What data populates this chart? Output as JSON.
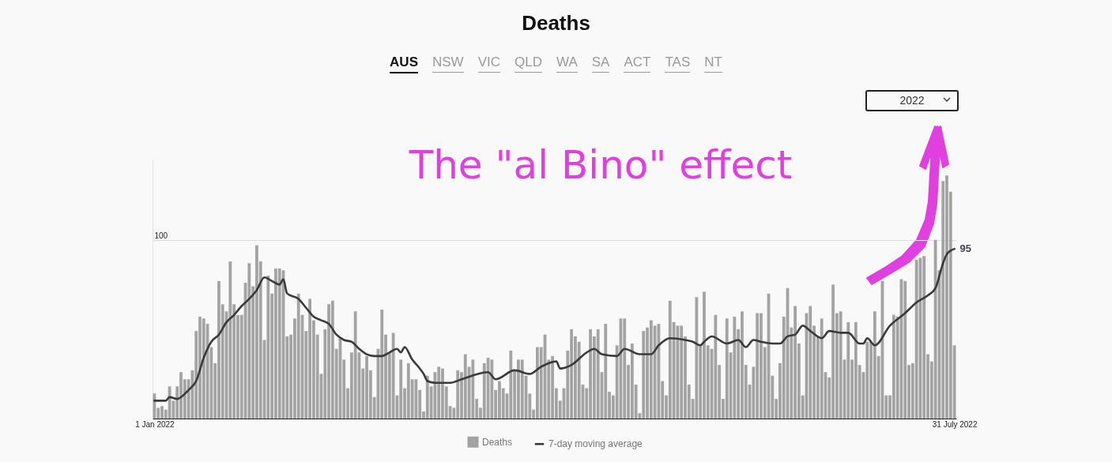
{
  "chart_data": {
    "type": "bar",
    "title": "Deaths",
    "annotations": [
      "AUS",
      "NSW",
      "VIC",
      "QLD",
      "WA",
      "SA",
      "ACT",
      "TAS",
      "NT",
      "2022",
      "The \"al Bino\" effect"
    ],
    "x": [
      "2022-01-01",
      "2022-01-02",
      "2022-01-03",
      "2022-01-04",
      "2022-01-05",
      "2022-01-06",
      "2022-01-07",
      "2022-01-08",
      "2022-01-09",
      "2022-01-10",
      "2022-01-11",
      "2022-01-12",
      "2022-01-13",
      "2022-01-14",
      "2022-01-15",
      "2022-01-16",
      "2022-01-17",
      "2022-01-18",
      "2022-01-19",
      "2022-01-20",
      "2022-01-21",
      "2022-01-22",
      "2022-01-23",
      "2022-01-24",
      "2022-01-25",
      "2022-01-26",
      "2022-01-27",
      "2022-01-28",
      "2022-01-29",
      "2022-01-30",
      "2022-01-31",
      "2022-02-01",
      "2022-02-02",
      "2022-02-03",
      "2022-02-04",
      "2022-02-05",
      "2022-02-06",
      "2022-02-07",
      "2022-02-08",
      "2022-02-09",
      "2022-02-10",
      "2022-02-11",
      "2022-02-12",
      "2022-02-13",
      "2022-02-14",
      "2022-02-15",
      "2022-02-16",
      "2022-02-17",
      "2022-02-18",
      "2022-02-19",
      "2022-02-20",
      "2022-02-21",
      "2022-02-22",
      "2022-02-23",
      "2022-02-24",
      "2022-02-25",
      "2022-02-26",
      "2022-02-27",
      "2022-02-28",
      "2022-03-01",
      "2022-03-02",
      "2022-03-03",
      "2022-03-04",
      "2022-03-05",
      "2022-03-06",
      "2022-03-07",
      "2022-03-08",
      "2022-03-09",
      "2022-03-10",
      "2022-03-11",
      "2022-03-12",
      "2022-03-13",
      "2022-03-14",
      "2022-03-15",
      "2022-03-16",
      "2022-03-17",
      "2022-03-18",
      "2022-03-19",
      "2022-03-20",
      "2022-03-21",
      "2022-03-22",
      "2022-03-23",
      "2022-03-24",
      "2022-03-25",
      "2022-03-26",
      "2022-03-27",
      "2022-03-28",
      "2022-03-29",
      "2022-03-30",
      "2022-03-31",
      "2022-04-01",
      "2022-04-02",
      "2022-04-03",
      "2022-04-04",
      "2022-04-05",
      "2022-04-06",
      "2022-04-07",
      "2022-04-08",
      "2022-04-09",
      "2022-04-10",
      "2022-04-11",
      "2022-04-12",
      "2022-04-13",
      "2022-04-14",
      "2022-04-15",
      "2022-04-16",
      "2022-04-17",
      "2022-04-18",
      "2022-04-19",
      "2022-04-20",
      "2022-04-21",
      "2022-04-22",
      "2022-04-23",
      "2022-04-24",
      "2022-04-25",
      "2022-04-26",
      "2022-04-27",
      "2022-04-28",
      "2022-04-29",
      "2022-04-30",
      "2022-05-01",
      "2022-05-02",
      "2022-05-03",
      "2022-05-04",
      "2022-05-05",
      "2022-05-06",
      "2022-05-07",
      "2022-05-08",
      "2022-05-09",
      "2022-05-10",
      "2022-05-11",
      "2022-05-12",
      "2022-05-13",
      "2022-05-14",
      "2022-05-15",
      "2022-05-16",
      "2022-05-17",
      "2022-05-18",
      "2022-05-19",
      "2022-05-20",
      "2022-05-21",
      "2022-05-22",
      "2022-05-23",
      "2022-05-24",
      "2022-05-25",
      "2022-05-26",
      "2022-05-27",
      "2022-05-28",
      "2022-05-29",
      "2022-05-30",
      "2022-05-31",
      "2022-06-01",
      "2022-06-02",
      "2022-06-03",
      "2022-06-04",
      "2022-06-05",
      "2022-06-06",
      "2022-06-07",
      "2022-06-08",
      "2022-06-09",
      "2022-06-10",
      "2022-06-11",
      "2022-06-12",
      "2022-06-13",
      "2022-06-14",
      "2022-06-15",
      "2022-06-16",
      "2022-06-17",
      "2022-06-18",
      "2022-06-19",
      "2022-06-20",
      "2022-06-21",
      "2022-06-22",
      "2022-06-23",
      "2022-06-24",
      "2022-06-25",
      "2022-06-26",
      "2022-06-27",
      "2022-06-28",
      "2022-06-29",
      "2022-06-30",
      "2022-07-01",
      "2022-07-02",
      "2022-07-03",
      "2022-07-04",
      "2022-07-05",
      "2022-07-06",
      "2022-07-07",
      "2022-07-08",
      "2022-07-09",
      "2022-07-10",
      "2022-07-11",
      "2022-07-12",
      "2022-07-13",
      "2022-07-14",
      "2022-07-15",
      "2022-07-16",
      "2022-07-17",
      "2022-07-18",
      "2022-07-19",
      "2022-07-20",
      "2022-07-21",
      "2022-07-22",
      "2022-07-23",
      "2022-07-24",
      "2022-07-25",
      "2022-07-26",
      "2022-07-27",
      "2022-07-28",
      "2022-07-29",
      "2022-07-30",
      "2022-07-31"
    ],
    "series": [
      {
        "name": "Deaths",
        "color": "#a3a3a3",
        "values": [
          14,
          6,
          7,
          5,
          18,
          10,
          18,
          26,
          22,
          22,
          27,
          49,
          57,
          56,
          53,
          40,
          31,
          77,
          64,
          60,
          88,
          64,
          58,
          58,
          76,
          87,
          74,
          97,
          88,
          44,
          80,
          70,
          84,
          84,
          83,
          46,
          47,
          56,
          70,
          58,
          49,
          67,
          55,
          47,
          25,
          50,
          64,
          66,
          39,
          45,
          33,
          17,
          37,
          60,
          37,
          28,
          35,
          27,
          12,
          39,
          61,
          47,
          37,
          48,
          13,
          33,
          17,
          31,
          22,
          22,
          16,
          4,
          24,
          18,
          26,
          29,
          28,
          18,
          7,
          6,
          27,
          26,
          36,
          29,
          33,
          11,
          6,
          31,
          34,
          33,
          16,
          21,
          17,
          14,
          38,
          27,
          33,
          33,
          24,
          14,
          5,
          40,
          40,
          47,
          33,
          35,
          17,
          10,
          17,
          38,
          50,
          46,
          43,
          19,
          17,
          50,
          46,
          50,
          26,
          53,
          15,
          13,
          41,
          56,
          56,
          30,
          42,
          19,
          3,
          49,
          51,
          55,
          52,
          53,
          21,
          13,
          66,
          54,
          52,
          52,
          46,
          19,
          11,
          68,
          41,
          71,
          41,
          39,
          58,
          30,
          11,
          56,
          37,
          57,
          50,
          60,
          30,
          19,
          29,
          59,
          59,
          40,
          70,
          24,
          11,
          31,
          57,
          73,
          51,
          63,
          42,
          13,
          59,
          63,
          52,
          46,
          56,
          26,
          23,
          75,
          59,
          60,
          33,
          54,
          33,
          54,
          30,
          26,
          43,
          43,
          60,
          35,
          77,
          13,
          13,
          58,
          57,
          78,
          77,
          30,
          31,
          89,
          90,
          91,
          36,
          32,
          100,
          83,
          133,
          136,
          127,
          41
        ]
      },
      {
        "name": "7-day moving average",
        "type": "line",
        "color": "#3a3a3a",
        "x": [
          "2022-01-01",
          "2022-01-04",
          "2022-01-05",
          "2022-01-07",
          "2022-01-10",
          "2022-01-12",
          "2022-01-14",
          "2022-01-16",
          "2022-01-18",
          "2022-01-20",
          "2022-01-22",
          "2022-01-24",
          "2022-01-26",
          "2022-01-28",
          "2022-01-30",
          "2022-02-01",
          "2022-02-03",
          "2022-02-04",
          "2022-02-05",
          "2022-02-08",
          "2022-02-10",
          "2022-02-12",
          "2022-02-14",
          "2022-02-16",
          "2022-02-18",
          "2022-02-20",
          "2022-02-22",
          "2022-02-24",
          "2022-02-26",
          "2022-02-28",
          "2022-03-02",
          "2022-03-04",
          "2022-03-06",
          "2022-03-07",
          "2022-03-08",
          "2022-03-10",
          "2022-03-12",
          "2022-03-13",
          "2022-03-14",
          "2022-03-16",
          "2022-03-20",
          "2022-03-23",
          "2022-03-30",
          "2022-04-01",
          "2022-04-06",
          "2022-04-10",
          "2022-04-13",
          "2022-04-17",
          "2022-04-18",
          "2022-04-21",
          "2022-04-25",
          "2022-04-27",
          "2022-04-29",
          "2022-05-03",
          "2022-05-05",
          "2022-05-09",
          "2022-05-12",
          "2022-05-14",
          "2022-05-17",
          "2022-05-21",
          "2022-05-23",
          "2022-05-25",
          "2022-05-26",
          "2022-05-28",
          "2022-06-01",
          "2022-06-04",
          "2022-06-06",
          "2022-06-08",
          "2022-06-10",
          "2022-06-13",
          "2022-06-15",
          "2022-06-17",
          "2022-06-19",
          "2022-06-21",
          "2022-06-23",
          "2022-06-26",
          "2022-06-28",
          "2022-07-01",
          "2022-07-03",
          "2022-07-06",
          "2022-07-07",
          "2022-07-08",
          "2022-07-10",
          "2022-07-14",
          "2022-07-18",
          "2022-07-21",
          "2022-07-24",
          "2022-07-26",
          "2022-07-28",
          "2022-07-29",
          "2022-07-30",
          "2022-07-31"
        ],
        "values": [
          10,
          10,
          12,
          11,
          16,
          21,
          34,
          43,
          47,
          54,
          58,
          63,
          67,
          72,
          79,
          77,
          75,
          78,
          70,
          67,
          62,
          57,
          55,
          53,
          47,
          44,
          43,
          39,
          36,
          35,
          35,
          37,
          39,
          37,
          40,
          33,
          28,
          25,
          21,
          20,
          20,
          22,
          26,
          22,
          27,
          25,
          29,
          32,
          28,
          30,
          37,
          39,
          36,
          35,
          39,
          36,
          36,
          41,
          45,
          44,
          43,
          41,
          43,
          46,
          42,
          44,
          40,
          44,
          43,
          42,
          42,
          46,
          47,
          52,
          49,
          45,
          49,
          48,
          48,
          42,
          42,
          45,
          41,
          52,
          59,
          65,
          69,
          73,
          87,
          92,
          94,
          95
        ],
        "value_labels": [
          null,
          null,
          null,
          null,
          null,
          null,
          null,
          null,
          null,
          null,
          null,
          null,
          null,
          null,
          null,
          null,
          null,
          null,
          null,
          null,
          null,
          null,
          null,
          null,
          null,
          null,
          null,
          null,
          null,
          null,
          null,
          null,
          null,
          null,
          null,
          null,
          null,
          null,
          null,
          null,
          null,
          null,
          null,
          null,
          null,
          null,
          null,
          null,
          null,
          null,
          null,
          null,
          null,
          null,
          null,
          null,
          null,
          null,
          null,
          null,
          null,
          null,
          null,
          null,
          null,
          null,
          null,
          null,
          null,
          null,
          null,
          null,
          null,
          null,
          null,
          null,
          null,
          null,
          null,
          null,
          null,
          null,
          null,
          null,
          null,
          null,
          null,
          null,
          null,
          null,
          null,
          "95"
        ]
      }
    ],
    "xlim": [
      "2021-12-31T12:00",
      "2022-07-31T12:00"
    ],
    "xticks": [
      {
        "value": "2022-01-01",
        "label": "1 Jan 2022"
      },
      {
        "value": "2022-07-31",
        "label": "31 July 2022"
      }
    ],
    "ylim": [
      0,
      145
    ],
    "yticks": [
      100
    ],
    "grid": "y",
    "legend": "bottom"
  }
}
